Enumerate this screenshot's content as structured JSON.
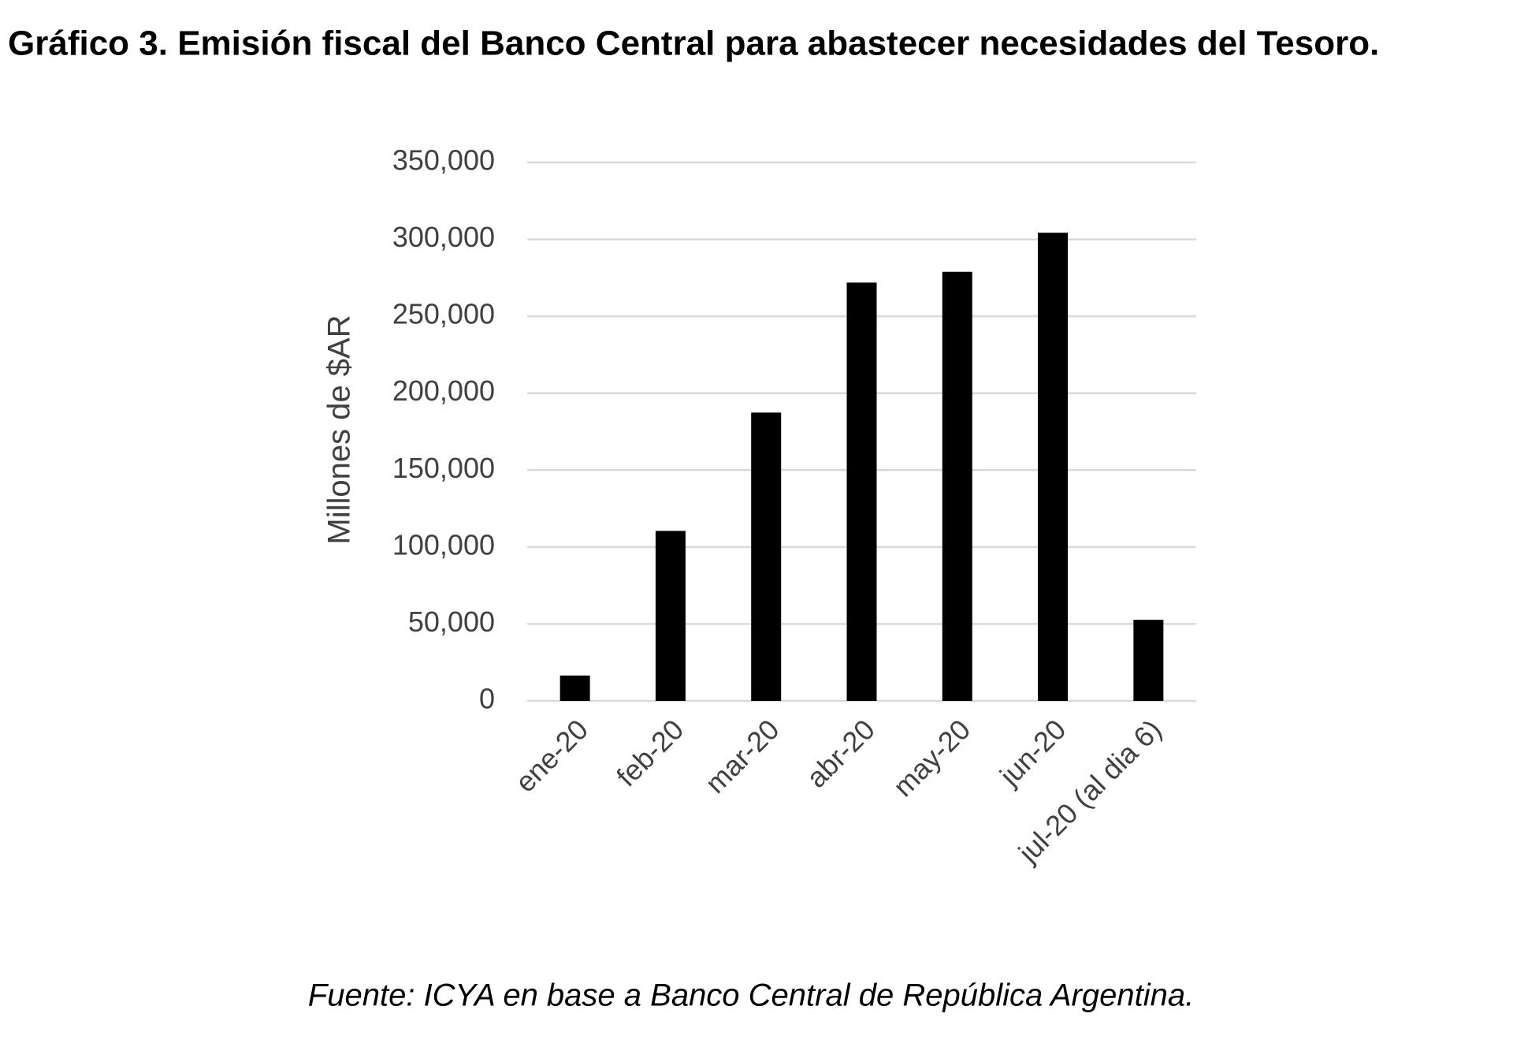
{
  "chart_data": {
    "type": "bar",
    "title": "Gráfico 3. Emisión fiscal del Banco Central para abastecer necesidades del Tesoro.",
    "y_label": "Millones de $AR",
    "source": "Fuente: ICYA en base a Banco Central de República Argentina.",
    "categories": [
      "ene-20",
      "feb-20",
      "mar-20",
      "abr-20",
      "may-20",
      "jun-20",
      "jul-20 (al dia 6)"
    ],
    "values": [
      16500,
      110500,
      187400,
      271900,
      278900,
      304300,
      52700
    ],
    "color": "#000000",
    "ylim": [
      0,
      350000
    ],
    "yticks": [
      0,
      {
        "value": 50000,
        "label": "50,000"
      },
      {
        "value": 100000,
        "label": "100,000"
      },
      {
        "value": 150000,
        "label": "150,000"
      },
      {
        "value": 200000,
        "label": "200,000"
      },
      {
        "value": 250000,
        "label": "250,000"
      },
      {
        "value": 300000,
        "label": "300,000"
      },
      {
        "value": 350000,
        "label": "350,000"
      }
    ],
    "grid": true
  }
}
